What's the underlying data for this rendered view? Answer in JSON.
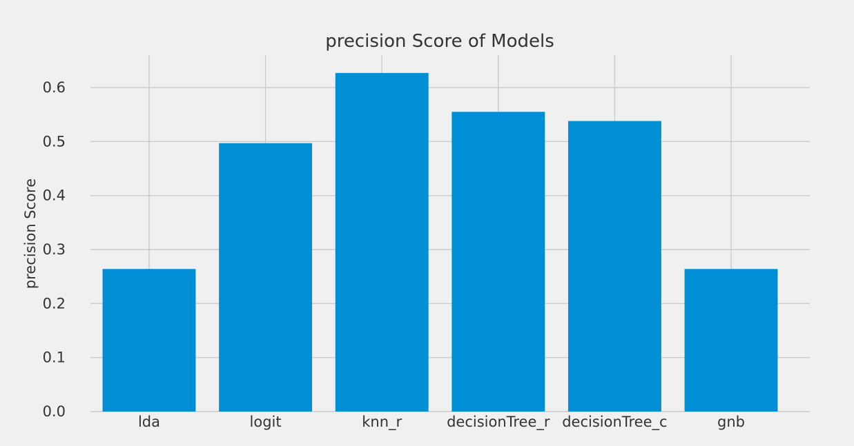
{
  "chart_data": {
    "type": "bar",
    "title": "precision Score of Models",
    "xlabel": "",
    "ylabel": "precision Score",
    "categories": [
      "lda",
      "logit",
      "knn_r",
      "decisionTree_r",
      "decisionTree_c",
      "gnb"
    ],
    "values": [
      0.264,
      0.497,
      0.627,
      0.555,
      0.538,
      0.264
    ],
    "ylim": [
      0,
      0.66
    ],
    "yticks": [
      "0.0",
      "0.1",
      "0.2",
      "0.3",
      "0.4",
      "0.5",
      "0.6"
    ],
    "grid": true,
    "bar_color": "#008fd5",
    "background_color": "#f0f0f0",
    "grid_color": "#cbcbcb"
  }
}
